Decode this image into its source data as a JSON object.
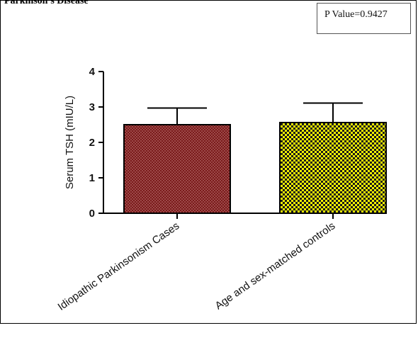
{
  "page": {
    "title": "Parkinson's Disease"
  },
  "annotation": {
    "p_value": "P Value=0.9427"
  },
  "chart_data": {
    "type": "bar",
    "title": "",
    "xlabel": "",
    "ylabel": "Serum TSH (mIU/L)",
    "categories": [
      "Idiopathic Parkinsonism Cases",
      "Age and sex-matched controls"
    ],
    "values": [
      2.5,
      2.56
    ],
    "error_upper": [
      0.47,
      0.55
    ],
    "ylim": [
      0,
      4
    ],
    "yticks": [
      0,
      1,
      2,
      3,
      4
    ],
    "grid": false,
    "colors": {
      "bar_1_fill": "#7a1a1a",
      "bar_1_dots": "#b56a6a",
      "bar_2_fill": "#f4f400",
      "bar_2_dots": "#1a1a1a",
      "axis": "#000000"
    }
  }
}
